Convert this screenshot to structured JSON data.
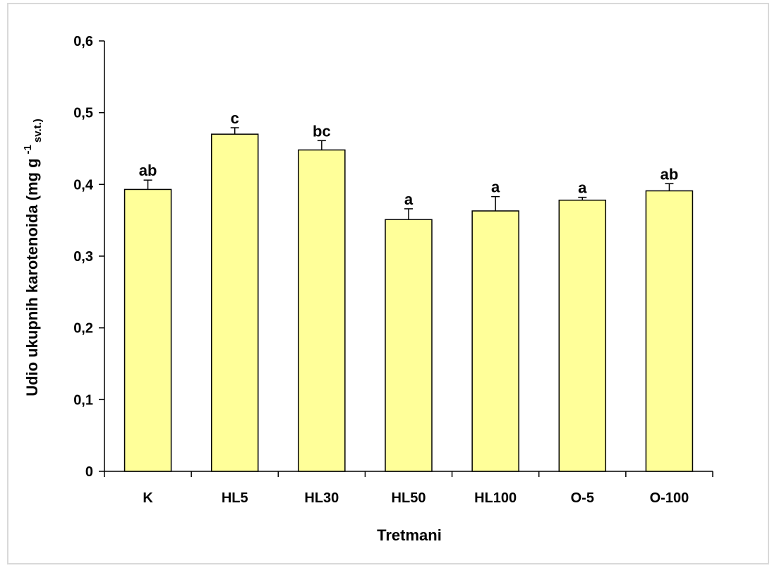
{
  "chart_data": {
    "type": "bar",
    "xlabel": "Tretmani",
    "ylabel": "Udio ukupnih karotenoida (mg g",
    "ylabel_superscript": "-1",
    "ylabel_subscript": "sv.t.)",
    "categories": [
      "K",
      "HL5",
      "HL30",
      "HL50",
      "HL100",
      "O-5",
      "O-100"
    ],
    "values": [
      0.393,
      0.47,
      0.448,
      0.351,
      0.363,
      0.378,
      0.391
    ],
    "errors": [
      0.013,
      0.009,
      0.013,
      0.015,
      0.02,
      0.004,
      0.01
    ],
    "significance_labels": [
      "ab",
      "c",
      "bc",
      "a",
      "a",
      "a",
      "ab"
    ],
    "ylim": [
      0,
      0.6
    ],
    "yticks": [
      0,
      0.1,
      0.2,
      0.3,
      0.4,
      0.5,
      0.6
    ],
    "ytick_labels": [
      "0",
      "0,1",
      "0,2",
      "0,3",
      "0,4",
      "0,5",
      "0,6"
    ],
    "grid": false,
    "legend": "none",
    "bar_color": "#FFFF99",
    "bar_edge_color": "#000000"
  }
}
